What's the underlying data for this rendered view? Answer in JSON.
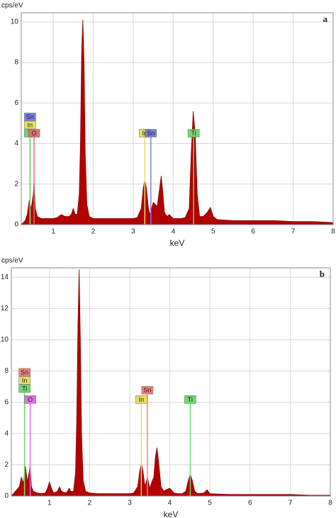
{
  "chart_data": [
    {
      "type": "area",
      "title": "a",
      "ylabel": "cps/eV",
      "xlabel": "keV",
      "color": "#b30000",
      "xlim": [
        0.2,
        8
      ],
      "ylim": [
        0,
        10.45
      ],
      "xticks": [
        1,
        2,
        3,
        4,
        5,
        6,
        7,
        8
      ],
      "yticks": [
        0,
        2,
        4,
        6,
        8,
        10
      ],
      "grid": true,
      "x": [
        0.2,
        0.3,
        0.35,
        0.4,
        0.45,
        0.5,
        0.52,
        0.55,
        0.6,
        0.7,
        0.8,
        0.9,
        1.0,
        1.1,
        1.2,
        1.3,
        1.4,
        1.45,
        1.5,
        1.55,
        1.6,
        1.65,
        1.68,
        1.71,
        1.74,
        1.77,
        1.8,
        1.84,
        1.9,
        2.0,
        2.2,
        2.4,
        2.6,
        2.8,
        3.0,
        3.1,
        3.2,
        3.25,
        3.29,
        3.33,
        3.38,
        3.42,
        3.46,
        3.5,
        3.55,
        3.6,
        3.66,
        3.7,
        3.74,
        3.78,
        3.85,
        3.9,
        4.0,
        4.1,
        4.2,
        4.3,
        4.4,
        4.45,
        4.5,
        4.55,
        4.6,
        4.66,
        4.75,
        4.85,
        4.93,
        5.0,
        5.1,
        5.5,
        6.0,
        6.5,
        7.0,
        7.5,
        8.0
      ],
      "values": [
        0,
        0.2,
        0.5,
        1.2,
        0.8,
        1.5,
        2.2,
        0.8,
        0.4,
        0.3,
        0.3,
        0.3,
        0.3,
        0.35,
        0.5,
        0.4,
        0.4,
        0.5,
        0.8,
        0.5,
        0.5,
        1.5,
        4,
        8.5,
        10.1,
        8,
        3.5,
        1,
        0.4,
        0.3,
        0.3,
        0.3,
        0.3,
        0.3,
        0.3,
        0.35,
        0.8,
        1.8,
        2.2,
        1.8,
        0.8,
        0.5,
        0.8,
        1.1,
        1.0,
        0.9,
        1.8,
        2.4,
        1.6,
        0.6,
        0.4,
        0.5,
        0.3,
        0.3,
        0.3,
        0.35,
        0.8,
        3.5,
        5.6,
        4.5,
        1.5,
        0.4,
        0.4,
        0.6,
        0.85,
        0.4,
        0.25,
        0.2,
        0.2,
        0.2,
        0.15,
        0.15,
        0.1
      ],
      "markers": [
        {
          "label": "Sn",
          "x": 0.42,
          "y": 4.3,
          "color": "#7f7fe0"
        },
        {
          "label": "In",
          "x": 0.42,
          "y": 4.3,
          "color": "#e8e060"
        },
        {
          "label": "Ti",
          "x": 0.42,
          "y": 4.3,
          "color": "#70d870"
        },
        {
          "label": "O",
          "x": 0.52,
          "y": 4.3,
          "color": "#e07070"
        },
        {
          "label": "In",
          "x": 3.29,
          "y": 4.3,
          "color": "#e8e060"
        },
        {
          "label": "Sn",
          "x": 3.44,
          "y": 4.3,
          "color": "#7f7fe0"
        },
        {
          "label": "Ti",
          "x": 4.51,
          "y": 4.3,
          "color": "#70d870"
        }
      ]
    },
    {
      "type": "area",
      "title": "b",
      "ylabel": "cps/eV",
      "xlabel": "keV",
      "color": "#b30000",
      "xlim": [
        0.05,
        8
      ],
      "ylim": [
        0,
        14.6
      ],
      "xticks": [
        1,
        2,
        3,
        4,
        5,
        6,
        7,
        8
      ],
      "yticks": [
        0,
        2,
        4,
        6,
        8,
        10,
        12,
        14
      ],
      "grid": true,
      "x": [
        0.05,
        0.15,
        0.25,
        0.3,
        0.35,
        0.4,
        0.45,
        0.5,
        0.52,
        0.55,
        0.6,
        0.7,
        0.8,
        0.9,
        0.95,
        1.0,
        1.05,
        1.1,
        1.2,
        1.25,
        1.3,
        1.4,
        1.45,
        1.49,
        1.53,
        1.6,
        1.65,
        1.68,
        1.71,
        1.74,
        1.77,
        1.8,
        1.84,
        1.9,
        2.0,
        2.2,
        2.4,
        2.6,
        2.8,
        3.0,
        3.1,
        3.2,
        3.25,
        3.29,
        3.33,
        3.38,
        3.44,
        3.5,
        3.55,
        3.6,
        3.64,
        3.68,
        3.72,
        3.78,
        3.85,
        3.9,
        4.0,
        4.1,
        4.2,
        4.3,
        4.4,
        4.45,
        4.51,
        4.56,
        4.62,
        4.7,
        4.85,
        4.93,
        5.0,
        5.5,
        6.0,
        6.5,
        7.0,
        7.5,
        8.0
      ],
      "values": [
        0,
        0.3,
        0.6,
        1.2,
        0.8,
        1.9,
        0.9,
        1.6,
        2.0,
        0.6,
        0.3,
        0.2,
        0.15,
        0.2,
        0.5,
        0.9,
        0.5,
        0.2,
        0.3,
        0.6,
        0.3,
        0.2,
        0.3,
        0.5,
        0.3,
        0.3,
        1.5,
        5,
        11,
        14.5,
        10,
        4,
        1,
        0.3,
        0.2,
        0.15,
        0.15,
        0.15,
        0.15,
        0.15,
        0.2,
        0.6,
        1.6,
        2.1,
        1.6,
        0.6,
        1.2,
        0.5,
        0.9,
        1.2,
        2.5,
        3.1,
        2.2,
        0.6,
        0.3,
        0.4,
        0.5,
        0.2,
        0.15,
        0.15,
        0.3,
        0.9,
        1.4,
        1.0,
        0.3,
        0.15,
        0.2,
        0.4,
        0.15,
        0.1,
        0.1,
        0.1,
        0.1,
        0.05,
        0.05
      ],
      "markers": [
        {
          "label": "Sn",
          "x": 0.38,
          "y": 6.6,
          "color": "#f08080"
        },
        {
          "label": "In",
          "x": 0.38,
          "y": 6.6,
          "color": "#e8e060"
        },
        {
          "label": "Ti",
          "x": 0.38,
          "y": 6.6,
          "color": "#70d870"
        },
        {
          "label": "O",
          "x": 0.52,
          "y": 5.9,
          "color": "#e070e0"
        },
        {
          "label": "In",
          "x": 3.29,
          "y": 5.9,
          "color": "#e8e060"
        },
        {
          "label": "Sn",
          "x": 3.44,
          "y": 6.5,
          "color": "#f08080"
        },
        {
          "label": "Ti",
          "x": 4.51,
          "y": 5.9,
          "color": "#70d870"
        }
      ]
    }
  ]
}
